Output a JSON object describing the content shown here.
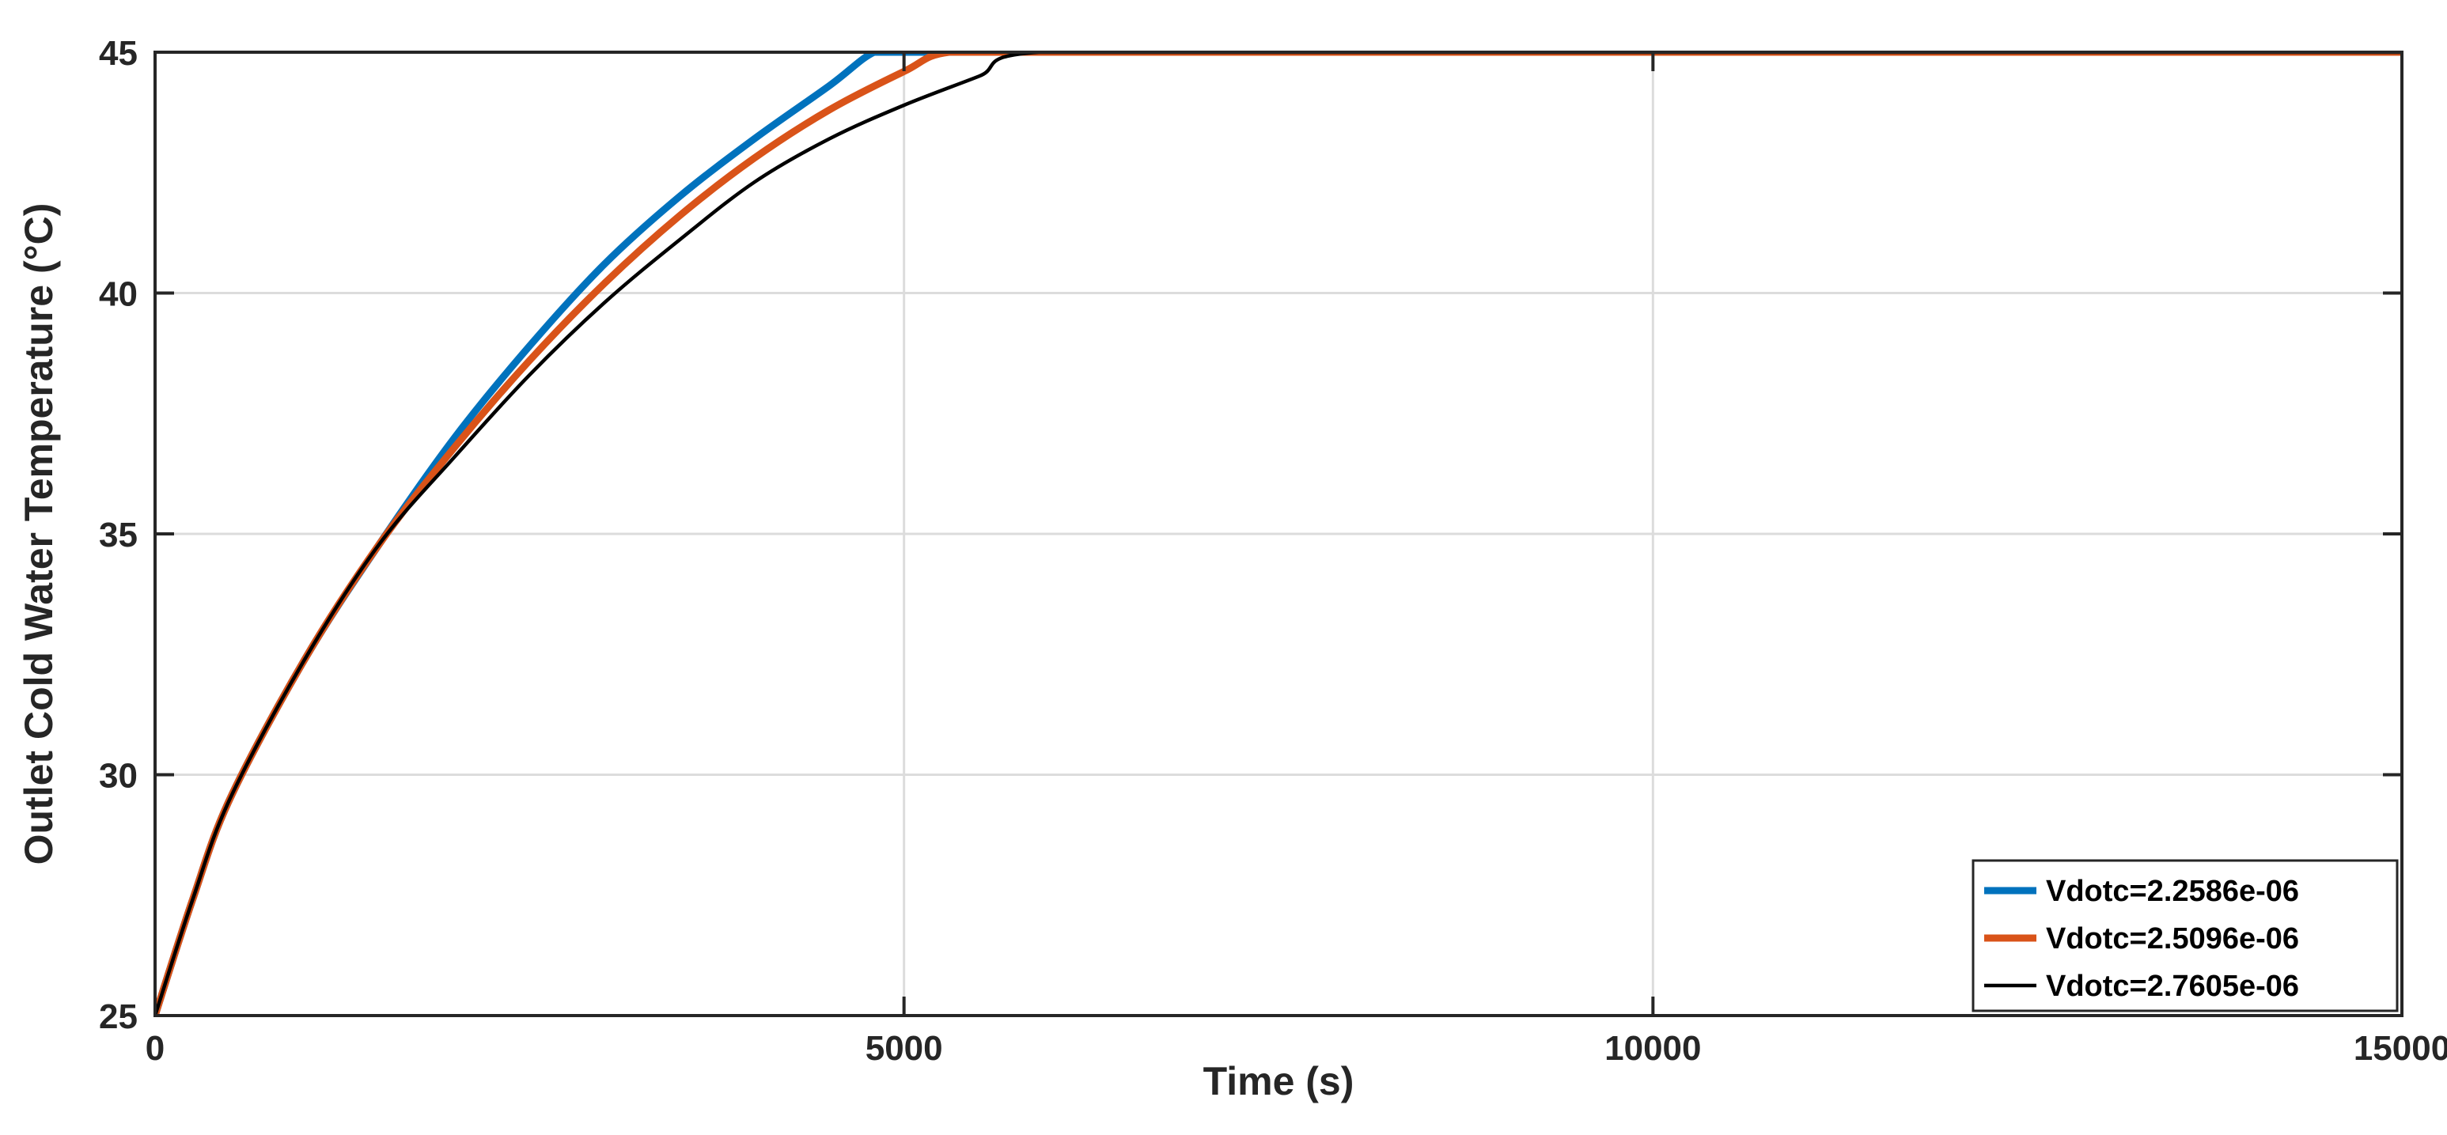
{
  "chart_data": {
    "type": "line",
    "title": "",
    "xlabel": "Time (s)",
    "ylabel": "Outlet Cold Water Temperature (°C)",
    "xlim": [
      0,
      15000
    ],
    "ylim": [
      25,
      45
    ],
    "xticks": [
      0,
      5000,
      10000,
      15000
    ],
    "yticks": [
      25,
      30,
      35,
      40,
      45
    ],
    "grid": true,
    "legend_position": "bottom-right",
    "series": [
      {
        "name": "Vdotc=2.2586e-06",
        "color": "#0072BD",
        "x": [
          0,
          250,
          500,
          1000,
          1500,
          2000,
          2500,
          3000,
          3500,
          4000,
          4500,
          4800,
          5000,
          6000,
          8000,
          10000,
          12000,
          15000
        ],
        "y": [
          25,
          27.4,
          29.5,
          32.4,
          34.8,
          37.0,
          38.9,
          40.6,
          42.0,
          43.2,
          44.3,
          45,
          45,
          45,
          45,
          45,
          45,
          45
        ]
      },
      {
        "name": "Vdotc=2.5096e-06",
        "color": "#D95319",
        "x": [
          0,
          250,
          500,
          1000,
          1500,
          2000,
          2500,
          3000,
          3500,
          4000,
          4500,
          5000,
          5300,
          6000,
          8000,
          10000,
          12000,
          15000
        ],
        "y": [
          25,
          27.4,
          29.5,
          32.4,
          34.8,
          36.8,
          38.6,
          40.2,
          41.6,
          42.8,
          43.8,
          44.6,
          45,
          45,
          45,
          45,
          45,
          45
        ]
      },
      {
        "name": "Vdotc=2.7605e-06",
        "color": "#000000",
        "x": [
          0,
          250,
          500,
          1000,
          1500,
          2000,
          2500,
          3000,
          3500,
          4000,
          4500,
          5000,
          5500,
          5900,
          8000,
          10000,
          12000,
          15000
        ],
        "y": [
          25,
          27.4,
          29.5,
          32.4,
          34.8,
          36.6,
          38.3,
          39.8,
          41.1,
          42.3,
          43.2,
          43.9,
          44.5,
          45,
          45,
          45,
          45,
          45
        ]
      }
    ]
  }
}
